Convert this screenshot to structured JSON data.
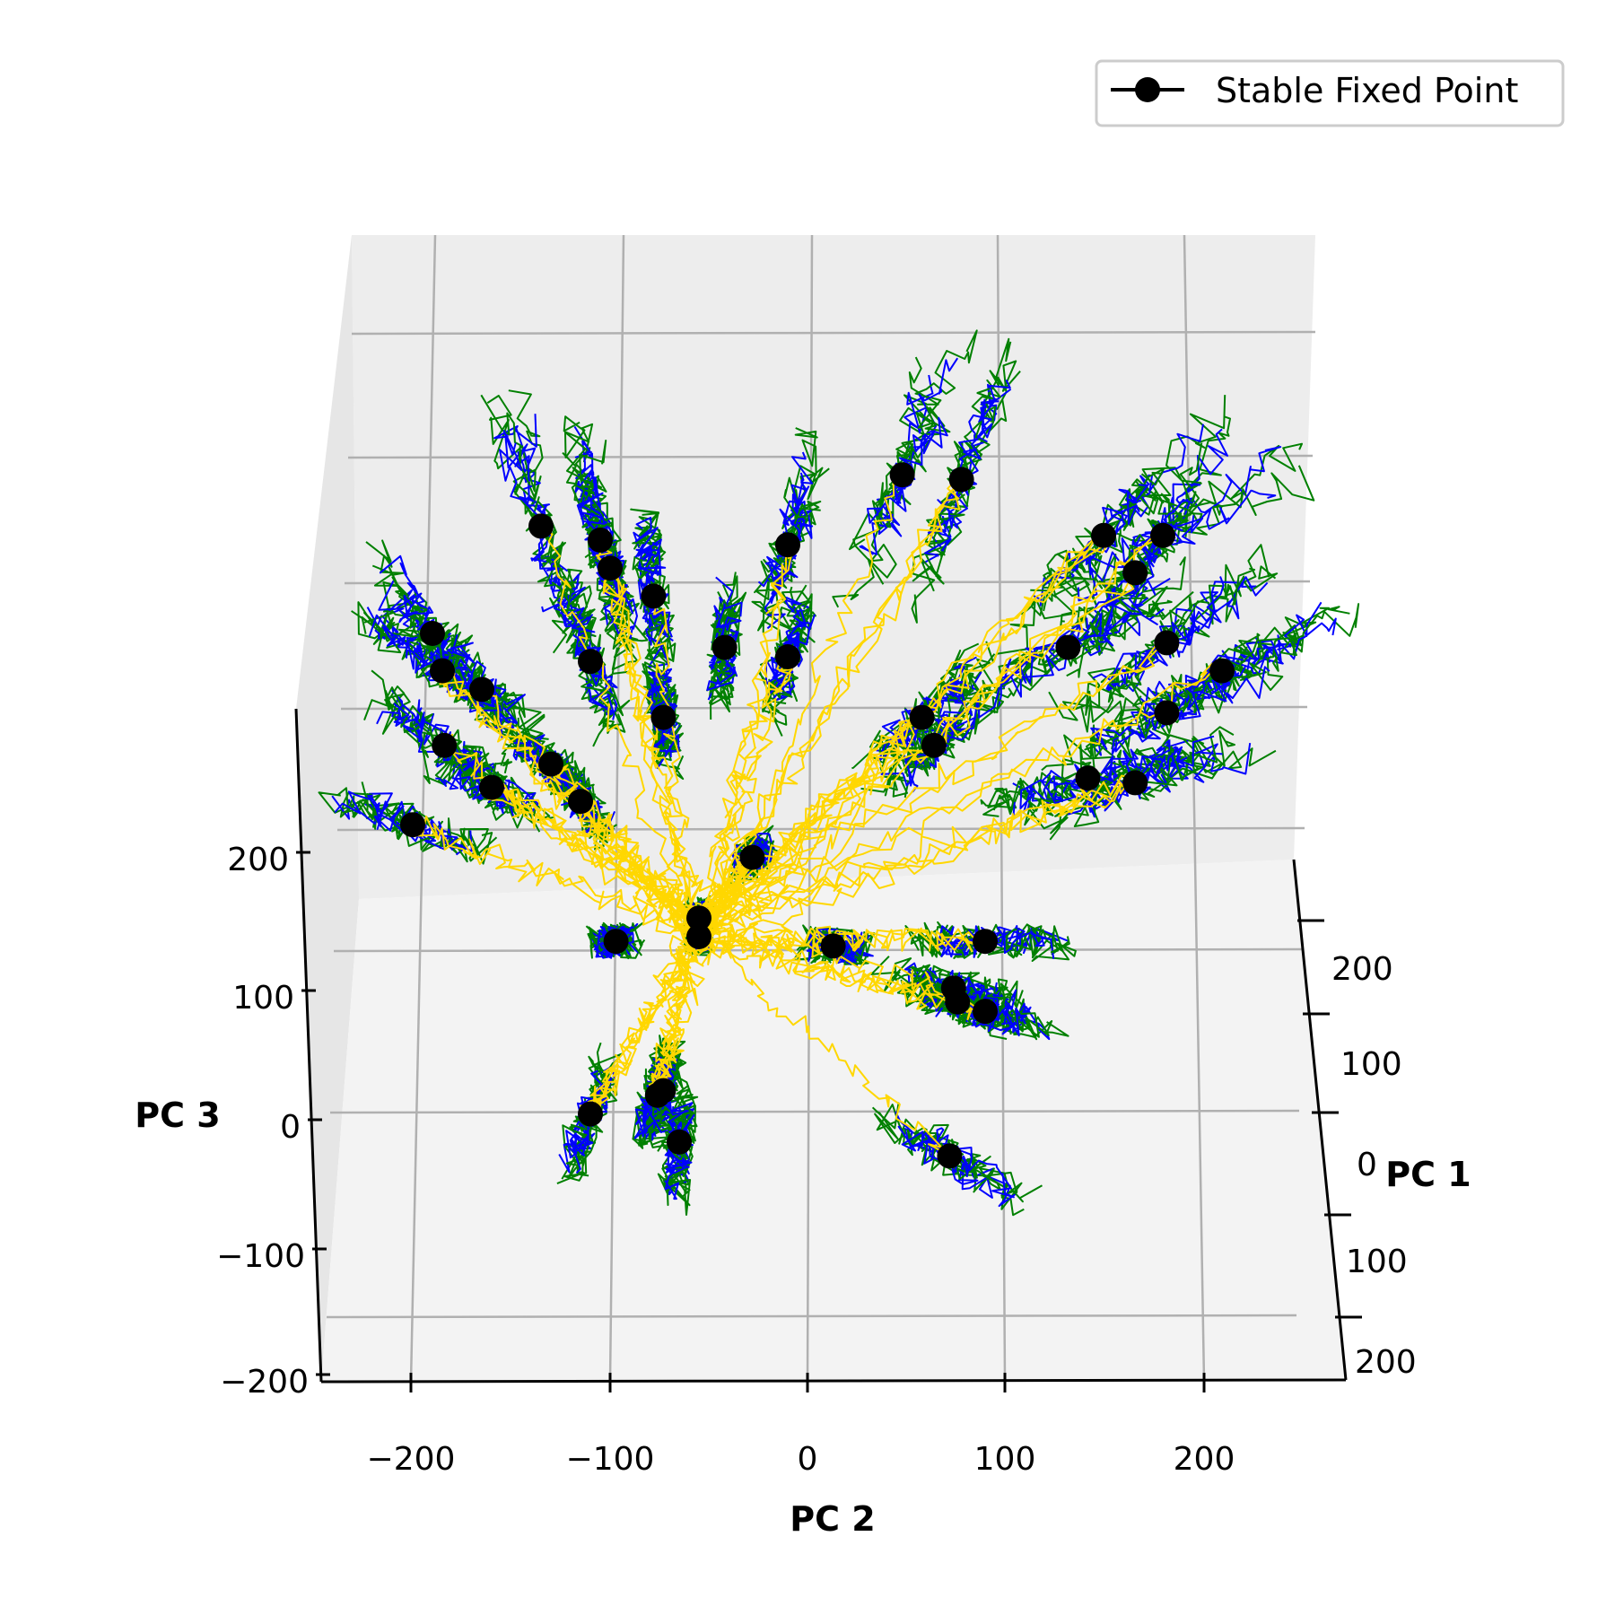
{
  "chart_data": {
    "type": "scatter",
    "view": "3d",
    "title": "",
    "axes": {
      "pc1": {
        "label": "PC 1",
        "ticks": [
          "0",
          "100",
          "200"
        ],
        "tick_labels_near": [
          "200",
          "100"
        ]
      },
      "pc2": {
        "label": "PC 2",
        "ticks": [
          "−200",
          "−100",
          "0",
          "100",
          "200"
        ]
      },
      "pc3": {
        "label": "PC 3",
        "ticks": [
          "−200",
          "−100",
          "0",
          "100",
          "200"
        ]
      }
    },
    "xlim": [
      -250,
      250
    ],
    "ylim": [
      -220,
      250
    ],
    "grid": true,
    "legend": {
      "position": "top-right",
      "entries": [
        "Stable Fixed Point"
      ]
    },
    "series": [
      {
        "name": "Stable Fixed Point",
        "color": "#000000",
        "marker": "circle",
        "points": [
          [
            -135,
            186
          ],
          [
            -105,
            180
          ],
          [
            -100,
            168
          ],
          [
            -78,
            156
          ],
          [
            -10,
            178
          ],
          [
            48,
            208
          ],
          [
            78,
            206
          ],
          [
            150,
            182
          ],
          [
            180,
            182
          ],
          [
            166,
            166
          ],
          [
            182,
            136
          ],
          [
            210,
            124
          ],
          [
            182,
            106
          ],
          [
            132,
            134
          ],
          [
            -190,
            140
          ],
          [
            -185,
            124
          ],
          [
            -165,
            116
          ],
          [
            -110,
            128
          ],
          [
            -42,
            134
          ],
          [
            -10,
            130
          ],
          [
            -73,
            104
          ],
          [
            58,
            104
          ],
          [
            64,
            92
          ],
          [
            -184,
            92
          ],
          [
            -160,
            74
          ],
          [
            -130,
            84
          ],
          [
            -115,
            68
          ],
          [
            -200,
            58
          ],
          [
            142,
            78
          ],
          [
            166,
            76
          ],
          [
            -28,
            44
          ],
          [
            -55,
            10
          ],
          [
            -55,
            18
          ],
          [
            -97,
            8
          ],
          [
            13,
            6
          ],
          [
            90,
            8
          ],
          [
            74,
            -12
          ],
          [
            76,
            -18
          ],
          [
            90,
            -22
          ],
          [
            -73,
            -56
          ],
          [
            -76,
            -58
          ],
          [
            -110,
            -66
          ],
          [
            -65,
            -78
          ],
          [
            72,
            -84
          ]
        ]
      },
      {
        "name": "",
        "color": "#0000ff",
        "type": "trajectory"
      },
      {
        "name": "",
        "color": "#008000",
        "type": "trajectory"
      },
      {
        "name": "",
        "color": "#ffd700",
        "type": "trajectory"
      }
    ]
  }
}
